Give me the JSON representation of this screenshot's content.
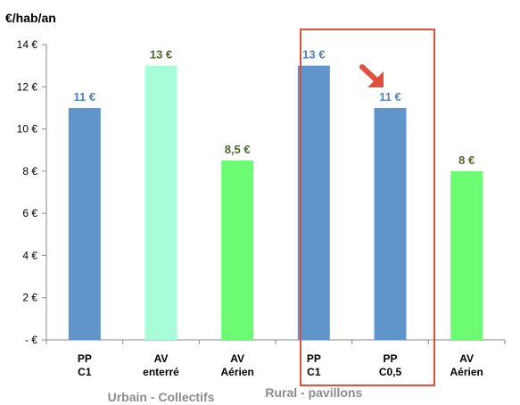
{
  "chart_data": {
    "type": "bar",
    "ylabel": "€/hab/an",
    "ylim": [
      0,
      14
    ],
    "yticks": [
      {
        "value": 0,
        "label": "-  €"
      },
      {
        "value": 2,
        "label": "2 €"
      },
      {
        "value": 4,
        "label": "4 €"
      },
      {
        "value": 6,
        "label": "6 €"
      },
      {
        "value": 8,
        "label": "8 €"
      },
      {
        "value": 10,
        "label": "10 €"
      },
      {
        "value": 12,
        "label": "12 €"
      },
      {
        "value": 14,
        "label": "14 €"
      }
    ],
    "grid": false,
    "bars": [
      {
        "line1": "PP",
        "line2": "C1",
        "value": 11,
        "label": "11 €",
        "color": "#5f95cb",
        "label_color": "#4f7fbf"
      },
      {
        "line1": "AV",
        "line2": "enterré",
        "value": 13,
        "label": "13 €",
        "color": "#a6fdd8",
        "label_color": "#4a6a28"
      },
      {
        "line1": "AV",
        "line2": "Aérien",
        "value": 8.5,
        "label": "8,5 €",
        "color": "#6cfb72",
        "label_color": "#4a6a28"
      },
      {
        "line1": "PP",
        "line2": "C1",
        "value": 13,
        "label": "13 €",
        "color": "#5f95cb",
        "label_color": "#4f7fbf"
      },
      {
        "line1": "PP",
        "line2": "C0,5",
        "value": 11,
        "label": "11 €",
        "color": "#5f95cb",
        "label_color": "#4f7fbf"
      },
      {
        "line1": "AV",
        "line2": "Aérien",
        "value": 8,
        "label": "8 €",
        "color": "#6cfb72",
        "label_color": "#4a6a28"
      }
    ],
    "groups": [
      {
        "label": "Urbain - Collectifs"
      },
      {
        "label": "Rural - pavillons"
      }
    ],
    "annotations": {
      "highlight_box_color": "#e0503c",
      "arrow_color": "#e0503c",
      "arrow_icon": "arrow-down-right-icon"
    }
  }
}
